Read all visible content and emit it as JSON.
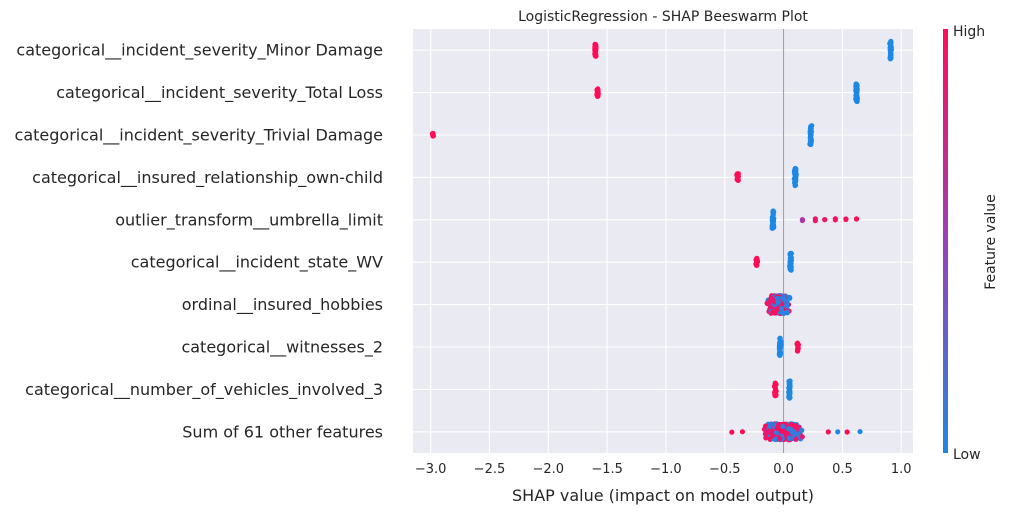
{
  "chart_data": {
    "type": "scatter",
    "subtype": "beeswarm",
    "title": "LogisticRegression - SHAP Beeswarm Plot",
    "xlabel": "SHAP value (impact on model output)",
    "ylabel": "",
    "xlim": [
      -3.15,
      1.1
    ],
    "xticks": [
      -3.0,
      -2.5,
      -2.0,
      -1.5,
      -1.0,
      -0.5,
      0.0,
      0.5,
      1.0
    ],
    "xtick_labels": [
      "−3.0",
      "−2.5",
      "−2.0",
      "−1.5",
      "−1.0",
      "−0.5",
      "0.0",
      "0.5",
      "1.0"
    ],
    "grid": true,
    "colors": {
      "low": "#1e88e5",
      "mid": "#9b3fb8",
      "high": "#ff0d57"
    },
    "colorbar": {
      "label": "Feature value",
      "high_label": "High",
      "low_label": "Low"
    },
    "features": [
      {
        "name": "categorical__incident_severity_Minor Damage",
        "clusters": [
          {
            "x": -1.6,
            "spread": 0.01,
            "count": 30,
            "value": 1.0,
            "height": 0.28
          },
          {
            "x": 0.91,
            "spread": 0.01,
            "count": 30,
            "value": 0.0,
            "height": 0.42
          }
        ]
      },
      {
        "name": "categorical__incident_severity_Total Loss",
        "clusters": [
          {
            "x": -1.58,
            "spread": 0.01,
            "count": 20,
            "value": 1.0,
            "height": 0.18
          },
          {
            "x": 0.62,
            "spread": 0.01,
            "count": 40,
            "value": 0.0,
            "height": 0.45
          }
        ]
      },
      {
        "name": "categorical__incident_severity_Trivial Damage",
        "clusters": [
          {
            "x": -2.98,
            "spread": 0.01,
            "count": 6,
            "value": 1.0,
            "height": 0.08
          },
          {
            "x": 0.23,
            "spread": 0.01,
            "count": 40,
            "value": 0.0,
            "height": 0.45
          }
        ]
      },
      {
        "name": "categorical__insured_relationship_own-child",
        "clusters": [
          {
            "x": -0.39,
            "spread": 0.01,
            "count": 15,
            "value": 1.0,
            "height": 0.18
          },
          {
            "x": 0.1,
            "spread": 0.01,
            "count": 40,
            "value": 0.0,
            "height": 0.42
          }
        ]
      },
      {
        "name": "outlier_transform__umbrella_limit",
        "clusters": [
          {
            "x": -0.09,
            "spread": 0.01,
            "count": 40,
            "value": 0.0,
            "height": 0.42
          },
          {
            "x": 0.16,
            "spread": 0.0,
            "count": 2,
            "value": 0.6,
            "height": 0.05
          },
          {
            "x": 0.27,
            "spread": 0.0,
            "count": 2,
            "value": 0.9,
            "height": 0.05
          },
          {
            "x": 0.35,
            "spread": 0.0,
            "count": 2,
            "value": 0.92,
            "height": 0.05
          },
          {
            "x": 0.44,
            "spread": 0.0,
            "count": 2,
            "value": 0.95,
            "height": 0.05
          },
          {
            "x": 0.53,
            "spread": 0.0,
            "count": 2,
            "value": 0.97,
            "height": 0.05
          },
          {
            "x": 0.62,
            "spread": 0.0,
            "count": 2,
            "value": 1.0,
            "height": 0.05
          }
        ]
      },
      {
        "name": "categorical__incident_state_WV",
        "clusters": [
          {
            "x": -0.23,
            "spread": 0.01,
            "count": 12,
            "value": 1.0,
            "height": 0.2
          },
          {
            "x": 0.06,
            "spread": 0.01,
            "count": 40,
            "value": 0.0,
            "height": 0.42
          }
        ]
      },
      {
        "name": "ordinal__insured_hobbies",
        "clusters": [
          {
            "x": -0.05,
            "spread": 0.12,
            "count": 320,
            "value": "mixed",
            "height": 0.42
          }
        ]
      },
      {
        "name": "categorical__witnesses_2",
        "clusters": [
          {
            "x": -0.03,
            "spread": 0.01,
            "count": 40,
            "value": 0.0,
            "height": 0.42
          },
          {
            "x": 0.12,
            "spread": 0.01,
            "count": 12,
            "value": 1.0,
            "height": 0.2
          }
        ]
      },
      {
        "name": "categorical__number_of_vehicles_involved_3",
        "clusters": [
          {
            "x": -0.07,
            "spread": 0.01,
            "count": 25,
            "value": 1.0,
            "height": 0.3
          },
          {
            "x": 0.05,
            "spread": 0.01,
            "count": 40,
            "value": 0.0,
            "height": 0.42
          }
        ]
      },
      {
        "name": "Sum of 61 other features",
        "clusters": [
          {
            "x": 0.0,
            "spread": 0.2,
            "count": 360,
            "value": "mixed",
            "height": 0.38
          },
          {
            "x": -0.44,
            "spread": 0.0,
            "count": 1,
            "value": 1.0,
            "height": 0.02
          },
          {
            "x": -0.35,
            "spread": 0.0,
            "count": 1,
            "value": 1.0,
            "height": 0.02
          },
          {
            "x": 0.38,
            "spread": 0.0,
            "count": 1,
            "value": 1.0,
            "height": 0.02
          },
          {
            "x": 0.46,
            "spread": 0.0,
            "count": 1,
            "value": 0.0,
            "height": 0.02
          },
          {
            "x": 0.54,
            "spread": 0.0,
            "count": 1,
            "value": 1.0,
            "height": 0.02
          },
          {
            "x": 0.65,
            "spread": 0.0,
            "count": 1,
            "value": 0.0,
            "height": 0.02
          }
        ]
      }
    ]
  }
}
